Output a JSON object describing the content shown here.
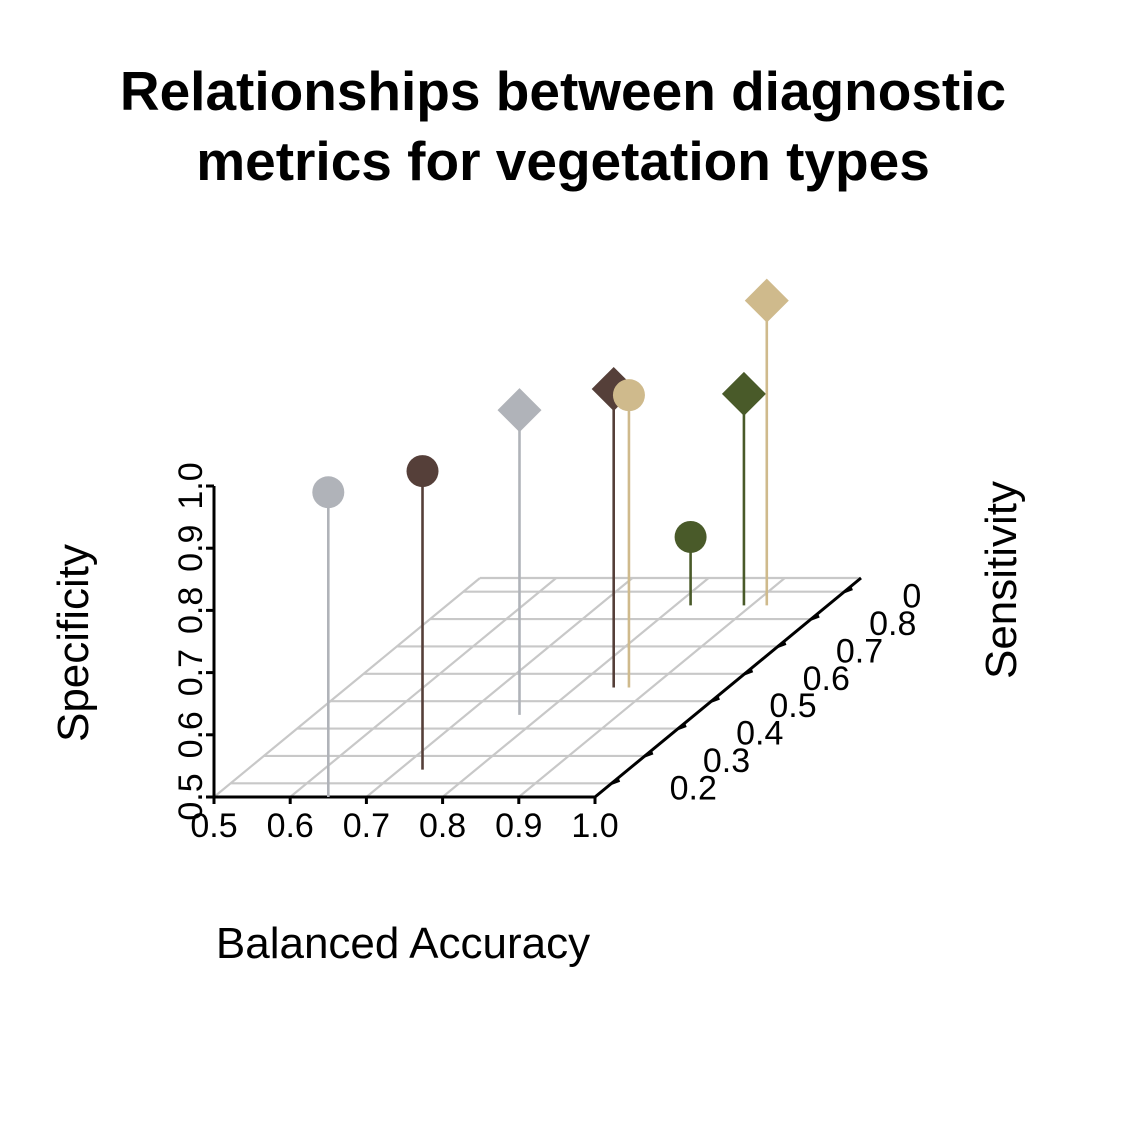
{
  "chart_data": {
    "type": "scatter",
    "subtype": "3d-scatter-with-drop-lines",
    "title": [
      "Relationships between diagnostic",
      "metrics for vegetation types"
    ],
    "xlabel": "Balanced Accuracy",
    "ylabel": "Sensitivity",
    "zlabel": "Specificity",
    "x_ticks": [
      "0.5",
      "0.6",
      "0.7",
      "0.8",
      "0.9",
      "1.0"
    ],
    "y_ticks": [
      "0.2",
      "0.3",
      "0.4",
      "0.5",
      "0.6",
      "0.7",
      "0.8",
      "0"
    ],
    "z_ticks": [
      "0.5",
      "0.6",
      "0.7",
      "0.8",
      "0.9",
      "1.0"
    ],
    "xlim": [
      0.5,
      1.0
    ],
    "ylim": [
      0.15,
      0.95
    ],
    "zlim": [
      0.5,
      1.0
    ],
    "grid": true,
    "points": [
      {
        "x": 0.65,
        "y": 0.15,
        "z": 0.99,
        "shape": "circle",
        "color": "#b0b3b9"
      },
      {
        "x": 0.73,
        "y": 0.25,
        "z": 0.98,
        "shape": "circle",
        "color": "#553f39"
      },
      {
        "x": 0.77,
        "y": 0.45,
        "z": 0.99,
        "shape": "diamond",
        "color": "#b0b3b9"
      },
      {
        "x": 0.85,
        "y": 0.55,
        "z": 0.98,
        "shape": "diamond",
        "color": "#553f39"
      },
      {
        "x": 0.87,
        "y": 0.55,
        "z": 0.97,
        "shape": "circle",
        "color": "#cfba8c"
      },
      {
        "x": 0.82,
        "y": 0.85,
        "z": 0.61,
        "shape": "circle",
        "color": "#495a29"
      },
      {
        "x": 0.89,
        "y": 0.85,
        "z": 0.84,
        "shape": "diamond",
        "color": "#495a29"
      },
      {
        "x": 0.92,
        "y": 0.85,
        "z": 0.99,
        "shape": "diamond",
        "color": "#cfba8c"
      }
    ]
  }
}
